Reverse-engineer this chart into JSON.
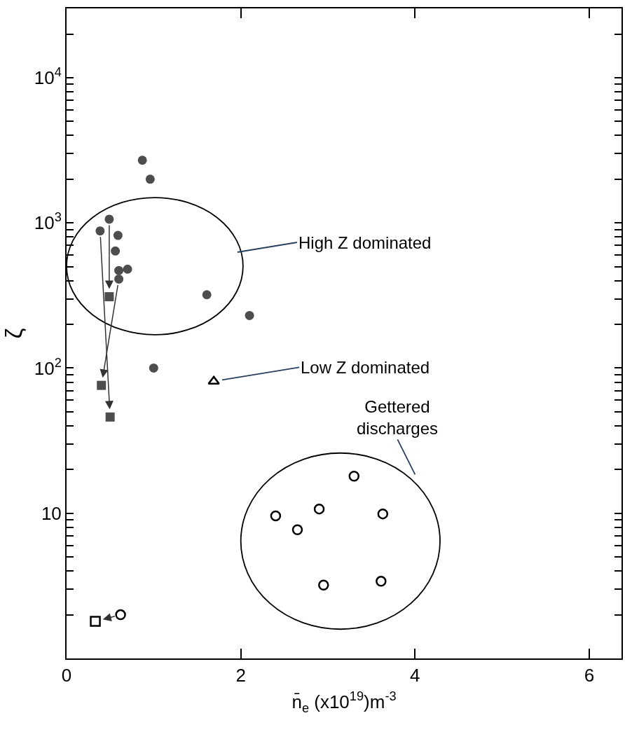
{
  "chart_data": {
    "type": "scatter",
    "xlabel": "n̄$_{e}$ (x10$^{19}$)m$^{-3}$",
    "ylabel": "ζ",
    "log": "y",
    "xlim": [
      0,
      6.37
    ],
    "xticks": [
      0,
      2,
      4,
      6
    ],
    "ylim": [
      1,
      30000
    ],
    "yticks": [
      {
        "value": 2,
        "label": null
      },
      {
        "value": 3,
        "label": null
      },
      {
        "value": 4,
        "label": null
      },
      {
        "value": 5,
        "label": null
      },
      {
        "value": 6,
        "label": null
      },
      {
        "value": 7,
        "label": null
      },
      {
        "value": 8,
        "label": null
      },
      {
        "value": 9,
        "label": null
      },
      10,
      {
        "value": 20,
        "label": null
      },
      {
        "value": 30,
        "label": null
      },
      {
        "value": 40,
        "label": null
      },
      {
        "value": 50,
        "label": null
      },
      {
        "value": 60,
        "label": null
      },
      {
        "value": 70,
        "label": null
      },
      {
        "value": 80,
        "label": null
      },
      {
        "value": 90,
        "label": null
      },
      {
        "value": 100,
        "label": "10$^{2}$"
      },
      {
        "value": 200,
        "label": null
      },
      {
        "value": 300,
        "label": null
      },
      {
        "value": 400,
        "label": null
      },
      {
        "value": 500,
        "label": null
      },
      {
        "value": 600,
        "label": null
      },
      {
        "value": 700,
        "label": null
      },
      {
        "value": 800,
        "label": null
      },
      {
        "value": 900,
        "label": null
      },
      {
        "value": 1000,
        "label": "10$^{3}$"
      },
      {
        "value": 2000,
        "label": null
      },
      {
        "value": 3000,
        "label": null
      },
      {
        "value": 4000,
        "label": null
      },
      {
        "value": 5000,
        "label": null
      },
      {
        "value": 6000,
        "label": null
      },
      {
        "value": 7000,
        "label": null
      },
      {
        "value": 8000,
        "label": null
      },
      {
        "value": 9000,
        "label": null
      },
      {
        "value": 10000,
        "label": "10$^{4}$"
      },
      {
        "value": 20000,
        "label": null
      }
    ],
    "legend": false,
    "series": [
      {
        "marker": "circle",
        "color": "#4d4d4d",
        "x": [
          0.49,
          0.385,
          0.59,
          0.56,
          0.6,
          0.7,
          0.6,
          1.61,
          2.1,
          1.0,
          0.87,
          0.96
        ],
        "values": [
          1060,
          880,
          820,
          640,
          470,
          480,
          410,
          320,
          230,
          100,
          2700,
          2000
        ]
      },
      {
        "marker": "square",
        "color": "#4d4d4d",
        "x": [
          0.49,
          0.4,
          0.5
        ],
        "values": [
          310,
          76,
          46
        ]
      },
      {
        "marker": "triangle",
        "color": "#000000",
        "x": [
          1.69
        ],
        "values": [
          81
        ]
      },
      {
        "marker": "circle",
        "color": "#000000",
        "x": [
          3.3,
          2.9,
          2.4,
          3.63,
          2.65,
          2.95,
          3.61,
          0.62
        ],
        "values": [
          18,
          10.7,
          9.6,
          9.9,
          7.7,
          3.2,
          3.4,
          2.0
        ]
      },
      {
        "marker": "square",
        "color": "#000000",
        "x": [
          0.33
        ],
        "values": [
          1.8
        ]
      }
    ],
    "annotations": [
      "High Z dominated",
      {
        "text": "Low Z dominated",
        "x": 1.69,
        "y": 81
      },
      "Gettered\ndischarges"
    ]
  }
}
